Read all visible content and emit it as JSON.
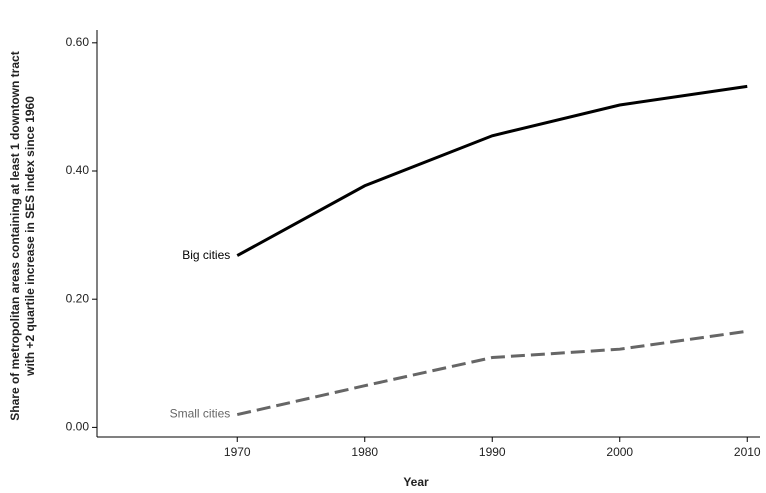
{
  "chart_data": {
    "type": "line",
    "xlabel": "Year",
    "ylabel": [
      "Share of metropolitan areas containing at least 1 downtown tract",
      "with +2 quartile increase in SES index since 1960"
    ],
    "x": [
      1970,
      1980,
      1990,
      2000,
      2010
    ],
    "series": [
      {
        "name": "Big cities",
        "color": "#000000",
        "dashed": false,
        "values": [
          0.268,
          0.377,
          0.455,
          0.503,
          0.532
        ]
      },
      {
        "name": "Small cities",
        "color": "#666666",
        "dashed": true,
        "values": [
          0.02,
          0.065,
          0.109,
          0.122,
          0.15
        ]
      }
    ],
    "xlim": [
      1959,
      2011
    ],
    "ylim": [
      -0.015,
      0.62
    ],
    "xticks": [
      1970,
      1980,
      1990,
      2000,
      2010
    ],
    "yticks": [
      {
        "value": 0,
        "label": "0.00"
      },
      {
        "value": 0.2,
        "label": "0.20"
      },
      {
        "value": 0.4,
        "label": "0.40"
      },
      {
        "value": 0.6,
        "label": "0.60"
      }
    ],
    "grid": false
  }
}
